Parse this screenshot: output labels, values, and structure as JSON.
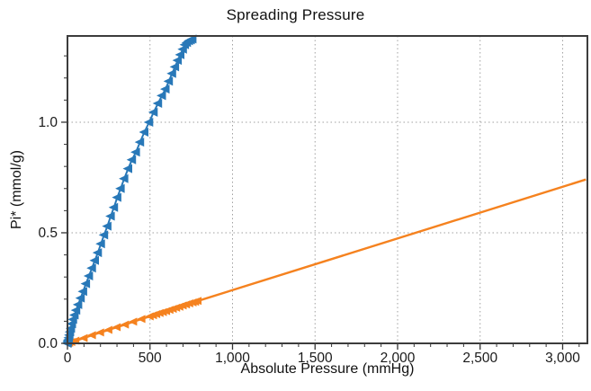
{
  "chart_data": {
    "type": "line",
    "title": "Spreading Pressure",
    "xlabel": "Absolute Pressure (mmHg)",
    "ylabel": "Pi* (mmol/g)",
    "xlim": [
      0,
      3150
    ],
    "ylim": [
      0,
      1.39
    ],
    "grid": {
      "style": "dotted",
      "color": "#a0a0a0",
      "on": true
    },
    "axis": {
      "border_color": "#3c3c3c",
      "tick_color": "#333333",
      "text_color": "#1a1a1a"
    },
    "x_ticks": {
      "major": [
        0,
        500,
        1000,
        1500,
        2000,
        2500,
        3000
      ],
      "labels": [
        "0",
        "500",
        "1,000",
        "1,500",
        "2,000",
        "2,500",
        "3,000"
      ],
      "minor_step": 100
    },
    "y_ticks": {
      "major": [
        0,
        0.5,
        1.0
      ],
      "labels": [
        "0.0",
        "0.5",
        "1.0"
      ],
      "minor_step": 0.1
    },
    "legend": "none",
    "series": [
      {
        "name": "reference-isotherm-orange",
        "color": "#F5821F",
        "marker": "triangle-left",
        "marker_size": 9,
        "line_width": 2.4,
        "points": [
          [
            0,
            0
          ],
          [
            5,
            0.001
          ],
          [
            12,
            0.003
          ],
          [
            25,
            0.006
          ],
          [
            50,
            0.012
          ],
          [
            100,
            0.024
          ],
          [
            150,
            0.037
          ],
          [
            200,
            0.049
          ],
          [
            250,
            0.061
          ],
          [
            300,
            0.073
          ],
          [
            350,
            0.085
          ],
          [
            400,
            0.098
          ],
          [
            450,
            0.11
          ],
          [
            500,
            0.122
          ],
          [
            520,
            0.127
          ],
          [
            540,
            0.132
          ],
          [
            560,
            0.137
          ],
          [
            580,
            0.141
          ],
          [
            600,
            0.146
          ],
          [
            620,
            0.151
          ],
          [
            640,
            0.156
          ],
          [
            660,
            0.161
          ],
          [
            680,
            0.166
          ],
          [
            700,
            0.171
          ],
          [
            720,
            0.176
          ],
          [
            740,
            0.181
          ],
          [
            760,
            0.185
          ],
          [
            775,
            0.188
          ],
          [
            790,
            0.192
          ]
        ],
        "line_extension": [
          [
            3141,
            0.741
          ]
        ]
      },
      {
        "name": "sample-isotherm-blue",
        "color": "#2878B8",
        "marker": "triangle-left",
        "marker_size": 10,
        "line_width": 2,
        "points": [
          [
            0,
            0
          ],
          [
            1,
            0.004
          ],
          [
            3,
            0.01
          ],
          [
            5,
            0.016
          ],
          [
            8,
            0.025
          ],
          [
            12,
            0.038
          ],
          [
            16,
            0.052
          ],
          [
            21,
            0.068
          ],
          [
            27,
            0.088
          ],
          [
            34,
            0.108
          ],
          [
            43,
            0.128
          ],
          [
            53,
            0.15
          ],
          [
            65,
            0.175
          ],
          [
            80,
            0.205
          ],
          [
            95,
            0.235
          ],
          [
            112,
            0.27
          ],
          [
            130,
            0.305
          ],
          [
            148,
            0.34
          ],
          [
            166,
            0.375
          ],
          [
            184,
            0.41
          ],
          [
            203,
            0.45
          ],
          [
            222,
            0.49
          ],
          [
            242,
            0.53
          ],
          [
            262,
            0.575
          ],
          [
            282,
            0.615
          ],
          [
            302,
            0.66
          ],
          [
            322,
            0.7
          ],
          [
            344,
            0.745
          ],
          [
            368,
            0.79
          ],
          [
            391,
            0.83
          ],
          [
            415,
            0.865
          ],
          [
            440,
            0.91
          ],
          [
            466,
            0.955
          ],
          [
            495,
            1.0
          ],
          [
            522,
            1.045
          ],
          [
            549,
            1.085
          ],
          [
            572,
            1.12
          ],
          [
            594,
            1.15
          ],
          [
            614,
            1.185
          ],
          [
            634,
            1.22
          ],
          [
            652,
            1.25
          ],
          [
            668,
            1.28
          ],
          [
            684,
            1.305
          ],
          [
            699,
            1.33
          ],
          [
            712,
            1.35
          ],
          [
            724,
            1.36
          ],
          [
            736,
            1.368
          ],
          [
            747,
            1.372
          ],
          [
            757,
            1.376
          ]
        ],
        "line_extension": []
      }
    ]
  }
}
